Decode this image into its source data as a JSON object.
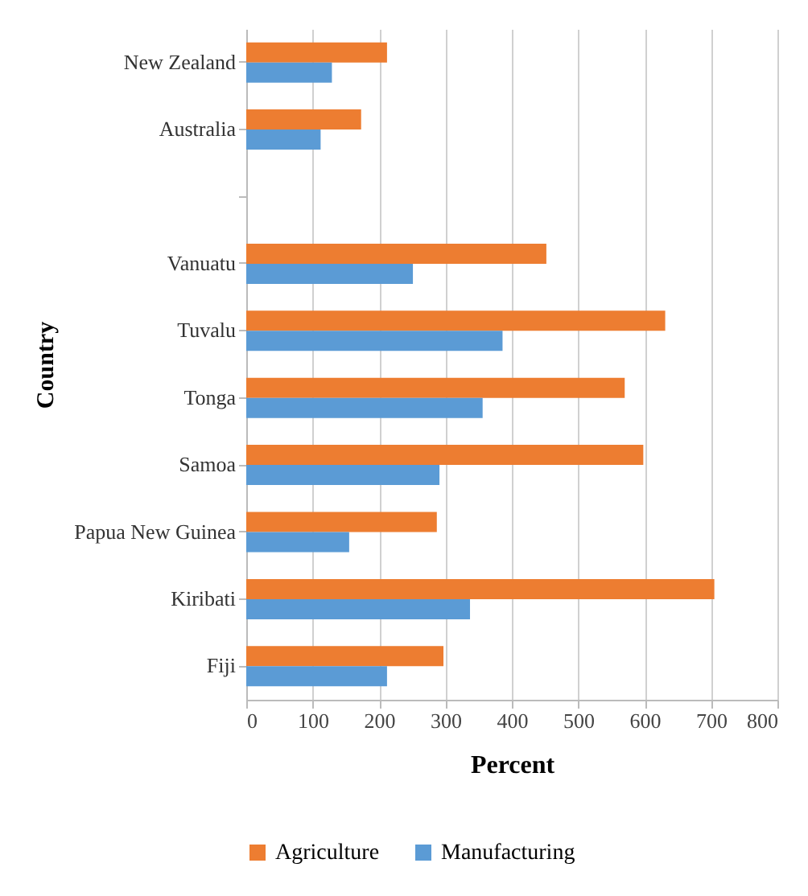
{
  "chart_data": {
    "type": "bar",
    "orientation": "horizontal",
    "xlabel": "Percent",
    "ylabel": "Country",
    "categories": [
      "New Zealand",
      "Australia",
      null,
      "Vanuatu",
      "Tuvalu",
      "Tonga",
      "Samoa",
      "Papua New Guinea",
      "Kiribati",
      "Fiji"
    ],
    "series": [
      {
        "name": "Agriculture",
        "color": "#ed7d31",
        "values": [
          212,
          173,
          null,
          452,
          631,
          570,
          598,
          287,
          705,
          297
        ]
      },
      {
        "name": "Manufacturing",
        "color": "#5b9bd5",
        "values": [
          129,
          112,
          null,
          251,
          386,
          356,
          291,
          155,
          337,
          212
        ]
      }
    ],
    "xlim": [
      0,
      800
    ],
    "xticks": [
      0,
      100,
      200,
      300,
      400,
      500,
      600,
      700,
      800
    ],
    "grid": "x",
    "legend": "bottom"
  }
}
